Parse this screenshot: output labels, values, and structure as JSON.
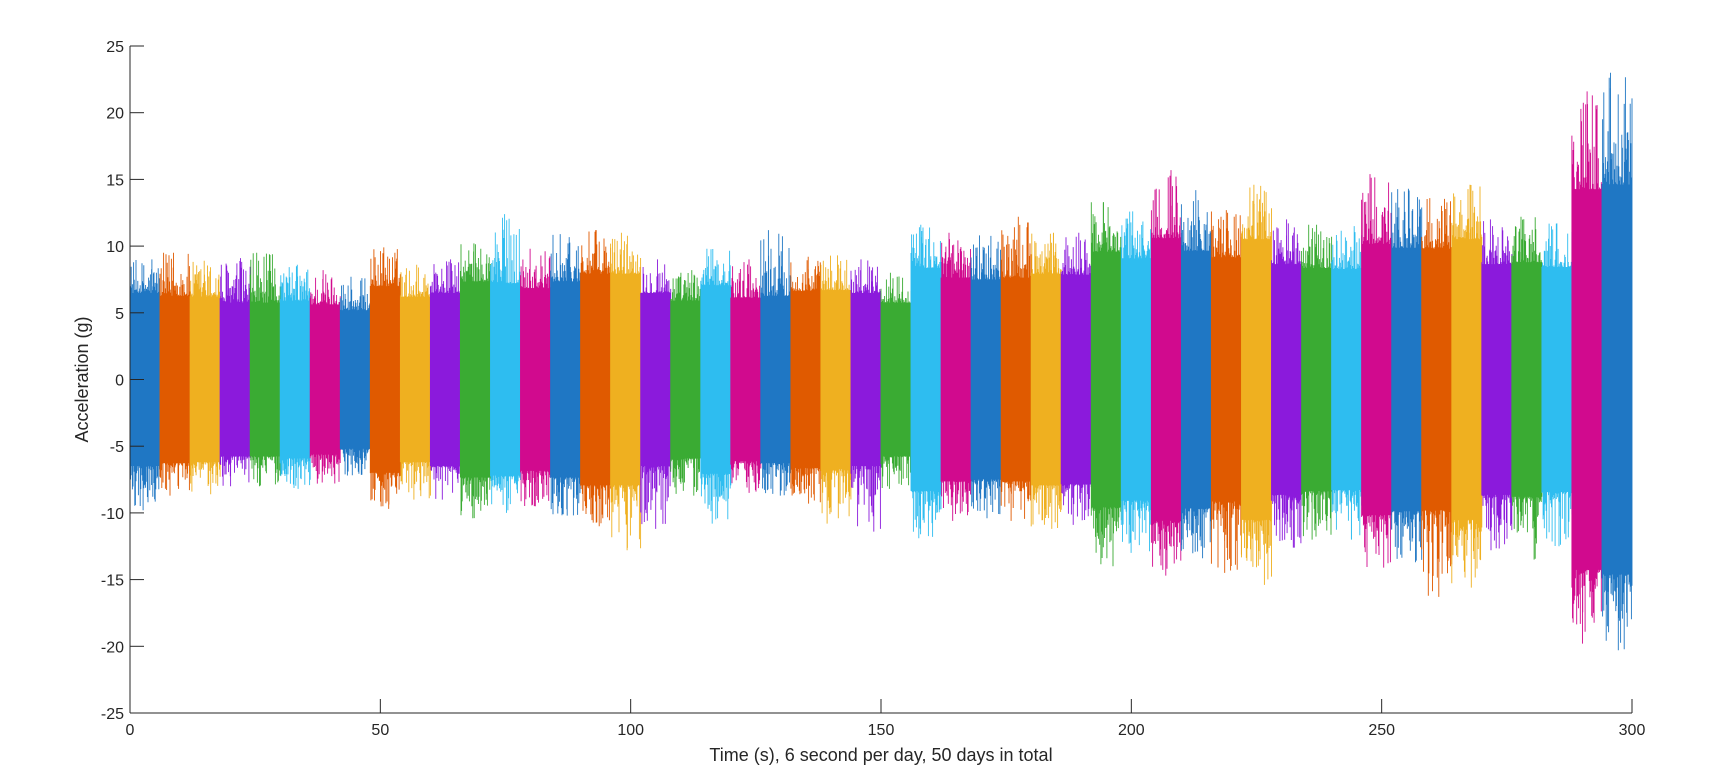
{
  "chart_data": {
    "type": "line",
    "title": "",
    "xlabel": "Time (s), 6 second per day, 50 days in total",
    "ylabel": "Acceleration (g)",
    "xlim": [
      0,
      300
    ],
    "ylim": [
      -25,
      25
    ],
    "xticks": [
      0,
      50,
      100,
      150,
      200,
      250,
      300
    ],
    "yticks": [
      -25,
      -20,
      -15,
      -10,
      -5,
      0,
      5,
      10,
      15,
      20,
      25
    ],
    "grid": false,
    "legend": "none",
    "colors": [
      "#0072BD",
      "#D95319",
      "#EDB120",
      "#7E2F8E",
      "#77AC30",
      "#4DBEEE",
      "#A2142F"
    ],
    "segment_seconds": 6,
    "series": [
      {
        "day": 1,
        "x_range": [
          0,
          6
        ],
        "color": "#1f77c4",
        "min": -9.8,
        "max": 9.0
      },
      {
        "day": 2,
        "x_range": [
          6,
          12
        ],
        "color": "#e05a00",
        "min": -8.7,
        "max": 9.5
      },
      {
        "day": 3,
        "x_range": [
          12,
          18
        ],
        "color": "#efb020",
        "min": -8.6,
        "max": 8.9
      },
      {
        "day": 4,
        "x_range": [
          18,
          24
        ],
        "color": "#8b1adc",
        "min": -8.0,
        "max": 9.1
      },
      {
        "day": 5,
        "x_range": [
          24,
          30
        ],
        "color": "#3aab33",
        "min": -8.0,
        "max": 9.5
      },
      {
        "day": 6,
        "x_range": [
          30,
          36
        ],
        "color": "#2ebdf0",
        "min": -8.2,
        "max": 8.6
      },
      {
        "day": 7,
        "x_range": [
          36,
          42
        ],
        "color": "#d10a8e",
        "min": -7.8,
        "max": 8.2
      },
      {
        "day": 8,
        "x_range": [
          42,
          48
        ],
        "color": "#1f77c4",
        "min": -7.2,
        "max": 7.7
      },
      {
        "day": 9,
        "x_range": [
          48,
          54
        ],
        "color": "#e05a00",
        "min": -9.7,
        "max": 9.9
      },
      {
        "day": 10,
        "x_range": [
          54,
          60
        ],
        "color": "#efb020",
        "min": -9.0,
        "max": 8.6
      },
      {
        "day": 11,
        "x_range": [
          60,
          66
        ],
        "color": "#8b1adc",
        "min": -9.0,
        "max": 9.0
      },
      {
        "day": 12,
        "x_range": [
          66,
          72
        ],
        "color": "#3aab33",
        "min": -10.4,
        "max": 10.2
      },
      {
        "day": 13,
        "x_range": [
          72,
          78
        ],
        "color": "#2ebdf0",
        "min": -10.0,
        "max": 12.4
      },
      {
        "day": 14,
        "x_range": [
          78,
          84
        ],
        "color": "#d10a8e",
        "min": -9.5,
        "max": 9.8
      },
      {
        "day": 15,
        "x_range": [
          84,
          90
        ],
        "color": "#1f77c4",
        "min": -10.2,
        "max": 10.9
      },
      {
        "day": 16,
        "x_range": [
          90,
          96
        ],
        "color": "#e05a00",
        "min": -11.0,
        "max": 11.2
      },
      {
        "day": 17,
        "x_range": [
          96,
          102
        ],
        "color": "#efb020",
        "min": -12.8,
        "max": 11.0
      },
      {
        "day": 18,
        "x_range": [
          102,
          108
        ],
        "color": "#8b1adc",
        "min": -11.2,
        "max": 9.0
      },
      {
        "day": 19,
        "x_range": [
          108,
          114
        ],
        "color": "#3aab33",
        "min": -8.7,
        "max": 8.2
      },
      {
        "day": 20,
        "x_range": [
          114,
          120
        ],
        "color": "#2ebdf0",
        "min": -10.8,
        "max": 9.8
      },
      {
        "day": 21,
        "x_range": [
          120,
          126
        ],
        "color": "#d10a8e",
        "min": -8.5,
        "max": 9.0
      },
      {
        "day": 22,
        "x_range": [
          126,
          132
        ],
        "color": "#1f77c4",
        "min": -8.7,
        "max": 11.2
      },
      {
        "day": 23,
        "x_range": [
          132,
          138
        ],
        "color": "#e05a00",
        "min": -9.3,
        "max": 9.2
      },
      {
        "day": 24,
        "x_range": [
          138,
          144
        ],
        "color": "#efb020",
        "min": -10.8,
        "max": 9.3
      },
      {
        "day": 25,
        "x_range": [
          144,
          150
        ],
        "color": "#8b1adc",
        "min": -11.4,
        "max": 9.0
      },
      {
        "day": 26,
        "x_range": [
          150,
          156
        ],
        "color": "#3aab33",
        "min": -8.2,
        "max": 8.0
      },
      {
        "day": 27,
        "x_range": [
          156,
          162
        ],
        "color": "#2ebdf0",
        "min": -11.9,
        "max": 11.6
      },
      {
        "day": 28,
        "x_range": [
          162,
          168
        ],
        "color": "#d10a8e",
        "min": -10.6,
        "max": 11.0
      },
      {
        "day": 29,
        "x_range": [
          168,
          174
        ],
        "color": "#1f77c4",
        "min": -10.4,
        "max": 10.8
      },
      {
        "day": 30,
        "x_range": [
          174,
          180
        ],
        "color": "#e05a00",
        "min": -10.6,
        "max": 12.2
      },
      {
        "day": 31,
        "x_range": [
          180,
          186
        ],
        "color": "#efb020",
        "min": -11.2,
        "max": 11.0
      },
      {
        "day": 32,
        "x_range": [
          186,
          192
        ],
        "color": "#8b1adc",
        "min": -10.9,
        "max": 11.0
      },
      {
        "day": 33,
        "x_range": [
          192,
          198
        ],
        "color": "#3aab33",
        "min": -14.0,
        "max": 13.3
      },
      {
        "day": 34,
        "x_range": [
          198,
          204
        ],
        "color": "#2ebdf0",
        "min": -13.0,
        "max": 12.6
      },
      {
        "day": 35,
        "x_range": [
          204,
          210
        ],
        "color": "#d10a8e",
        "min": -14.7,
        "max": 15.7
      },
      {
        "day": 36,
        "x_range": [
          210,
          216
        ],
        "color": "#1f77c4",
        "min": -13.4,
        "max": 14.2
      },
      {
        "day": 37,
        "x_range": [
          216,
          222
        ],
        "color": "#e05a00",
        "min": -14.5,
        "max": 12.7
      },
      {
        "day": 38,
        "x_range": [
          222,
          228
        ],
        "color": "#efb020",
        "min": -15.4,
        "max": 14.6
      },
      {
        "day": 39,
        "x_range": [
          228,
          234
        ],
        "color": "#8b1adc",
        "min": -12.6,
        "max": 12.0
      },
      {
        "day": 40,
        "x_range": [
          234,
          240
        ],
        "color": "#3aab33",
        "min": -12.0,
        "max": 11.6
      },
      {
        "day": 41,
        "x_range": [
          240,
          246
        ],
        "color": "#2ebdf0",
        "min": -12.0,
        "max": 11.5
      },
      {
        "day": 42,
        "x_range": [
          246,
          252
        ],
        "color": "#d10a8e",
        "min": -14.1,
        "max": 15.4
      },
      {
        "day": 43,
        "x_range": [
          252,
          258
        ],
        "color": "#1f77c4",
        "min": -13.7,
        "max": 14.3
      },
      {
        "day": 44,
        "x_range": [
          258,
          264
        ],
        "color": "#e05a00",
        "min": -16.3,
        "max": 13.6
      },
      {
        "day": 45,
        "x_range": [
          264,
          270
        ],
        "color": "#efb020",
        "min": -15.6,
        "max": 14.6
      },
      {
        "day": 46,
        "x_range": [
          270,
          276
        ],
        "color": "#8b1adc",
        "min": -12.8,
        "max": 12.0
      },
      {
        "day": 47,
        "x_range": [
          276,
          282
        ],
        "color": "#3aab33",
        "min": -13.5,
        "max": 12.2
      },
      {
        "day": 48,
        "x_range": [
          282,
          288
        ],
        "color": "#2ebdf0",
        "min": -12.5,
        "max": 11.7
      },
      {
        "day": 49,
        "x_range": [
          288,
          294
        ],
        "color": "#d10a8e",
        "min": -19.8,
        "max": 21.6
      },
      {
        "day": 50,
        "x_range": [
          294,
          300
        ],
        "color": "#1f77c4",
        "min": -20.3,
        "max": 23.0
      }
    ]
  }
}
